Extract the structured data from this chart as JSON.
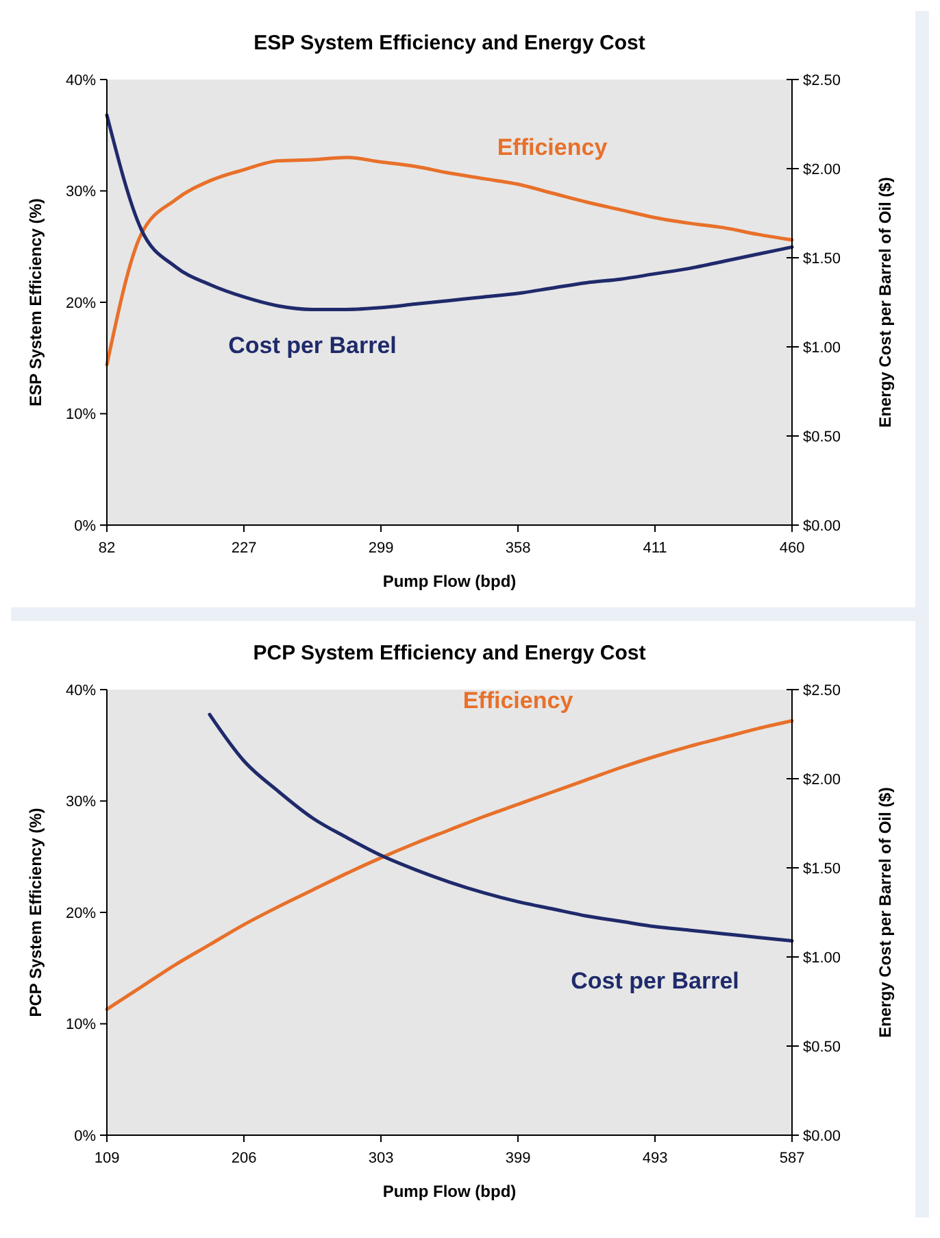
{
  "chart_data": [
    {
      "type": "line",
      "title": "ESP System Efficiency and Energy Cost",
      "xlabel": "Pump Flow (bpd)",
      "ylabel": "ESP System Efficiency (%)",
      "y2label": "Energy Cost per Barrel of Oil ($)",
      "categories": [
        "82",
        null,
        null,
        null,
        "227",
        null,
        null,
        null,
        "299",
        null,
        null,
        null,
        "358",
        null,
        null,
        null,
        "411",
        null,
        null,
        null,
        "460"
      ],
      "series": [
        {
          "name": "Efficiency",
          "color": "#e8702a",
          "values": [
            14.4,
            26.1,
            29.2,
            30.9,
            31.9,
            32.7,
            32.8,
            33.0,
            32.6,
            32.2,
            31.6,
            31.1,
            30.6,
            29.8,
            29.0,
            28.3,
            27.6,
            27.1,
            26.7,
            26.1,
            25.6
          ]
        },
        {
          "name": "Cost per Barrel",
          "color": "#1f2a6b",
          "axis": "y2",
          "values": [
            2.3,
            1.66,
            1.45,
            1.35,
            1.28,
            1.23,
            1.21,
            1.21,
            1.22,
            1.24,
            1.26,
            1.28,
            1.3,
            1.33,
            1.36,
            1.38,
            1.41,
            1.44,
            1.48,
            1.52,
            1.56
          ]
        }
      ],
      "ylim": [
        0,
        40
      ],
      "yticks": [
        {
          "value": 0,
          "label": "0%"
        },
        {
          "value": 10,
          "label": "10%"
        },
        {
          "value": 20,
          "label": "20%"
        },
        {
          "value": 30,
          "label": "30%"
        },
        {
          "value": 40,
          "label": "40%"
        }
      ],
      "y2lim": [
        0,
        2.5
      ],
      "y2ticks": [
        {
          "value": 0,
          "label": "$0.00"
        },
        {
          "value": 0.5,
          "label": "$0.50"
        },
        {
          "value": 1,
          "label": "$1.00"
        },
        {
          "value": 1.5,
          "label": "$1.50"
        },
        {
          "value": 2,
          "label": "$2.00"
        },
        {
          "value": 2.5,
          "label": "$2.50"
        }
      ],
      "grid": false,
      "marker": "none",
      "line_style": "solid"
    },
    {
      "type": "line",
      "title": "PCP System Efficiency and Energy Cost",
      "xlabel": "Pump Flow (bpd)",
      "ylabel": "PCP System Efficiency (%)",
      "y2label": "Energy Cost per Barrel of Oil ($)",
      "categories": [
        "109",
        null,
        null,
        null,
        "206",
        null,
        null,
        null,
        "303",
        null,
        null,
        null,
        "399",
        null,
        null,
        null,
        "493",
        null,
        null,
        null,
        "587"
      ],
      "series": [
        {
          "name": "Efficiency",
          "color": "#e8702a",
          "values": [
            11.3,
            13.3,
            15.3,
            17.1,
            18.9,
            20.5,
            22.0,
            23.5,
            24.9,
            26.2,
            27.4,
            28.6,
            29.7,
            30.8,
            31.9,
            33.0,
            34.0,
            34.9,
            35.7,
            36.5,
            37.2
          ]
        },
        {
          "name": "Cost per Barrel",
          "color": "#1f2a6b",
          "axis": "y2",
          "values": [
            null,
            null,
            null,
            2.36,
            2.1,
            1.93,
            1.78,
            1.67,
            1.57,
            1.49,
            1.42,
            1.36,
            1.31,
            1.27,
            1.23,
            1.2,
            1.17,
            1.15,
            1.13,
            1.11,
            1.09
          ]
        }
      ],
      "ylim": [
        0,
        40
      ],
      "yticks": [
        {
          "value": 0,
          "label": "0%"
        },
        {
          "value": 10,
          "label": "10%"
        },
        {
          "value": 20,
          "label": "20%"
        },
        {
          "value": 30,
          "label": "30%"
        },
        {
          "value": 40,
          "label": "40%"
        }
      ],
      "y2lim": [
        0,
        2.5
      ],
      "y2ticks": [
        {
          "value": 0,
          "label": "$0.00"
        },
        {
          "value": 0.5,
          "label": "$0.50"
        },
        {
          "value": 1,
          "label": "$1.00"
        },
        {
          "value": 1.5,
          "label": "$1.50"
        },
        {
          "value": 2,
          "label": "$2.00"
        },
        {
          "value": 2.5,
          "label": "$2.50"
        }
      ],
      "grid": false,
      "marker": "none",
      "line_style": "solid"
    }
  ]
}
